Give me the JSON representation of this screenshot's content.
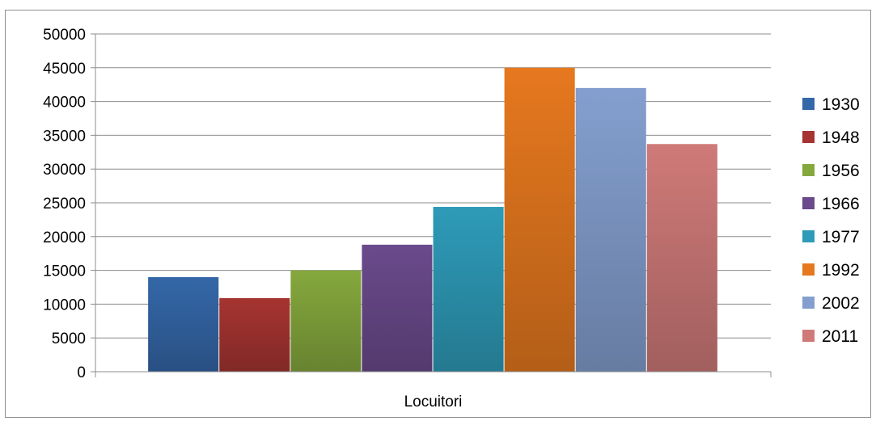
{
  "chart_data": {
    "type": "bar",
    "categories": [
      "Locuitori"
    ],
    "xlabel": "",
    "ylabel": "",
    "title": "",
    "ylim": [
      0,
      50000
    ],
    "yticks": [
      0,
      5000,
      10000,
      15000,
      20000,
      25000,
      30000,
      35000,
      40000,
      45000,
      50000
    ],
    "grid": true,
    "legend_position": "right",
    "series": [
      {
        "name": "1930",
        "values": [
          14000
        ],
        "color": "#3467a8"
      },
      {
        "name": "1948",
        "values": [
          10900
        ],
        "color": "#a63431"
      },
      {
        "name": "1956",
        "values": [
          15000
        ],
        "color": "#85a83d"
      },
      {
        "name": "1966",
        "values": [
          18800
        ],
        "color": "#6a4a8c"
      },
      {
        "name": "1977",
        "values": [
          24400
        ],
        "color": "#2e9bb8"
      },
      {
        "name": "1992",
        "values": [
          45000
        ],
        "color": "#e6781f"
      },
      {
        "name": "2002",
        "values": [
          42000
        ],
        "color": "#849fcf"
      },
      {
        "name": "2011",
        "values": [
          33700
        ],
        "color": "#cf7a78"
      }
    ]
  }
}
